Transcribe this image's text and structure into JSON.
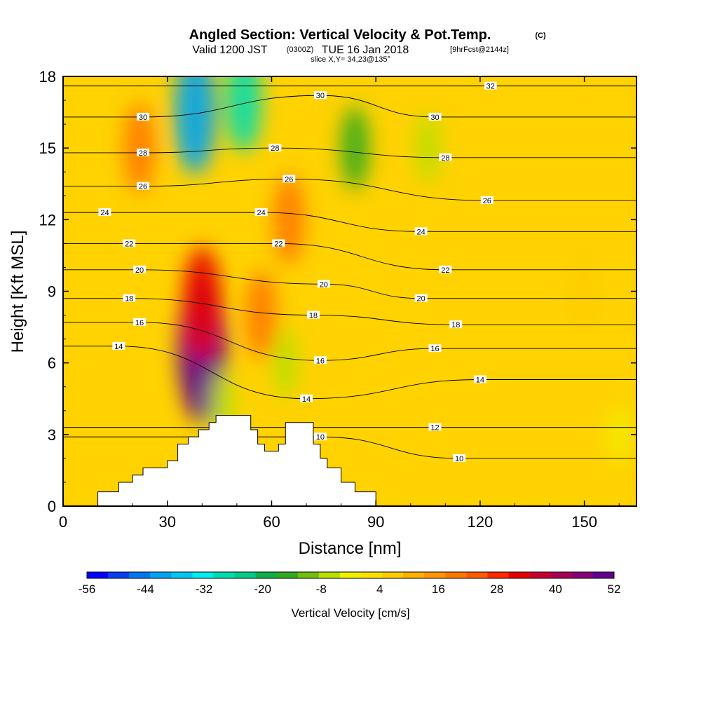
{
  "title": {
    "main": "Angled Section: Vertical Velocity & Pot.Temp.",
    "copyright": "(C)",
    "valid_prefix": "Valid 1200 JST",
    "utc": "(0300Z)",
    "valid_suffix": "TUE 16 Jan 2018",
    "forecast": "[9hrFcst@2144z]",
    "slice": "slice X,Y= 34,23@135°"
  },
  "chart_data": {
    "type": "heatmap",
    "xlabel": "Distance [nm]",
    "ylabel": "Height [Kft MSL]",
    "xlim": [
      0,
      165
    ],
    "ylim": [
      0,
      18
    ],
    "xticks": [
      0,
      30,
      60,
      90,
      120,
      150
    ],
    "yticks": [
      0,
      3,
      6,
      9,
      12,
      15,
      18
    ],
    "colorbar": {
      "label": "Vertical Velocity [cm/s]",
      "min": -56,
      "max": 52,
      "tick_labels": [
        -56,
        -44,
        -32,
        -20,
        -8,
        4,
        16,
        28,
        40,
        52
      ],
      "colors": [
        "#0000ff",
        "#0a3cf5",
        "#0078f0",
        "#00a4f0",
        "#00c8f0",
        "#00eeee",
        "#00ddb0",
        "#00cc88",
        "#10b048",
        "#30aa20",
        "#70c010",
        "#b8e000",
        "#f0f000",
        "#ffe000",
        "#ffcc00",
        "#ffb000",
        "#ff9600",
        "#ff7800",
        "#ff5a00",
        "#ff2800",
        "#e80000",
        "#c80030",
        "#a80058",
        "#880078",
        "#600090"
      ]
    },
    "velocity_cells": [
      {
        "x": 40,
        "y": 6.5,
        "value": 52
      },
      {
        "x": 40,
        "y": 8.5,
        "value": 34
      },
      {
        "x": 22,
        "y": 15,
        "value": 20
      },
      {
        "x": 65,
        "y": 12,
        "value": 20
      },
      {
        "x": 57,
        "y": 8,
        "value": 20
      },
      {
        "x": 38,
        "y": 16.5,
        "value": -40
      },
      {
        "x": 52,
        "y": 17,
        "value": -28
      },
      {
        "x": 84,
        "y": 15,
        "value": -16
      },
      {
        "x": 105,
        "y": 15,
        "value": -8
      },
      {
        "x": 64,
        "y": 6,
        "value": -8
      },
      {
        "x": 46,
        "y": 4.2,
        "value": -8
      },
      {
        "x": 150,
        "y": 9,
        "value": 8
      },
      {
        "x": 160,
        "y": 3,
        "value": -2
      }
    ],
    "theta_contours": [
      {
        "value": 10,
        "label_x": 114,
        "label_y": 2.0
      },
      {
        "value": 10,
        "label_x": 74,
        "label_y": 2.9
      },
      {
        "value": 12,
        "label_x": 107,
        "label_y": 3.3
      },
      {
        "value": 14,
        "label_x": 70,
        "label_y": 4.5
      },
      {
        "value": 14,
        "label_x": 16,
        "label_y": 6.7
      },
      {
        "value": 14,
        "label_x": 120,
        "label_y": 5.3
      },
      {
        "value": 16,
        "label_x": 22,
        "label_y": 7.7
      },
      {
        "value": 16,
        "label_x": 74,
        "label_y": 6.1
      },
      {
        "value": 16,
        "label_x": 107,
        "label_y": 6.6
      },
      {
        "value": 18,
        "label_x": 19,
        "label_y": 8.7
      },
      {
        "value": 18,
        "label_x": 72,
        "label_y": 8.0
      },
      {
        "value": 18,
        "label_x": 113,
        "label_y": 7.6
      },
      {
        "value": 20,
        "label_x": 22,
        "label_y": 9.9
      },
      {
        "value": 20,
        "label_x": 75,
        "label_y": 9.3
      },
      {
        "value": 20,
        "label_x": 103,
        "label_y": 8.7
      },
      {
        "value": 22,
        "label_x": 19,
        "label_y": 11.0
      },
      {
        "value": 22,
        "label_x": 62,
        "label_y": 11.0
      },
      {
        "value": 22,
        "label_x": 110,
        "label_y": 9.9
      },
      {
        "value": 24,
        "label_x": 12,
        "label_y": 12.3
      },
      {
        "value": 24,
        "label_x": 57,
        "label_y": 12.3
      },
      {
        "value": 24,
        "label_x": 103,
        "label_y": 11.5
      },
      {
        "value": 26,
        "label_x": 23,
        "label_y": 13.4
      },
      {
        "value": 26,
        "label_x": 65,
        "label_y": 13.7
      },
      {
        "value": 26,
        "label_x": 122,
        "label_y": 12.8
      },
      {
        "value": 28,
        "label_x": 23,
        "label_y": 14.8
      },
      {
        "value": 28,
        "label_x": 61,
        "label_y": 15.0
      },
      {
        "value": 28,
        "label_x": 110,
        "label_y": 14.6
      },
      {
        "value": 30,
        "label_x": 23,
        "label_y": 16.3
      },
      {
        "value": 30,
        "label_x": 74,
        "label_y": 17.2
      },
      {
        "value": 30,
        "label_x": 107,
        "label_y": 16.3
      },
      {
        "value": 32,
        "label_x": 123,
        "label_y": 17.6
      }
    ],
    "terrain": [
      {
        "x": 0,
        "h": 0
      },
      {
        "x": 10,
        "h": 0.6
      },
      {
        "x": 16,
        "h": 1.0
      },
      {
        "x": 20,
        "h": 1.3
      },
      {
        "x": 23,
        "h": 1.6
      },
      {
        "x": 26,
        "h": 1.6
      },
      {
        "x": 30,
        "h": 1.9
      },
      {
        "x": 33,
        "h": 2.6
      },
      {
        "x": 36,
        "h": 2.9
      },
      {
        "x": 39,
        "h": 3.2
      },
      {
        "x": 42,
        "h": 3.5
      },
      {
        "x": 44,
        "h": 3.8
      },
      {
        "x": 48,
        "h": 3.8
      },
      {
        "x": 52,
        "h": 3.8
      },
      {
        "x": 54,
        "h": 3.2
      },
      {
        "x": 56,
        "h": 2.6
      },
      {
        "x": 58,
        "h": 2.3
      },
      {
        "x": 62,
        "h": 2.6
      },
      {
        "x": 64,
        "h": 3.5
      },
      {
        "x": 70,
        "h": 3.5
      },
      {
        "x": 72,
        "h": 2.6
      },
      {
        "x": 74,
        "h": 2.0
      },
      {
        "x": 76,
        "h": 1.6
      },
      {
        "x": 80,
        "h": 1.0
      },
      {
        "x": 84,
        "h": 0.6
      },
      {
        "x": 90,
        "h": 0
      }
    ]
  }
}
